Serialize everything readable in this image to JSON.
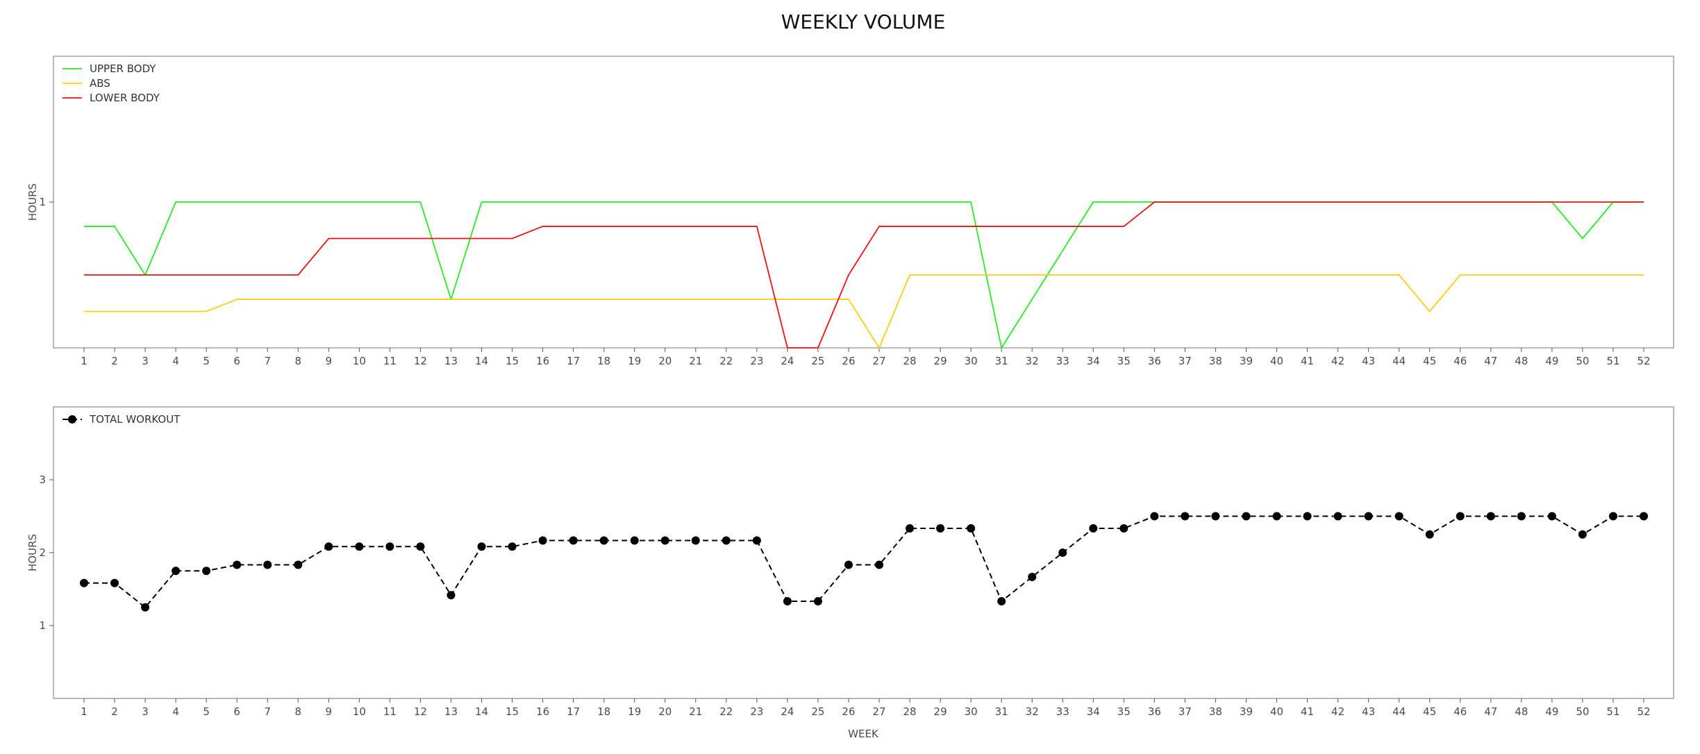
{
  "title": "WEEKLY VOLUME",
  "xlabel": "WEEK",
  "colors": {
    "upper_body": "#22ee22",
    "abs": "#ffcc11",
    "lower_body": "#ee1111",
    "total": "#000000",
    "frame": "#888888",
    "text": "#4a4a4a"
  },
  "chart_data": [
    {
      "type": "line",
      "ylabel": "HOURS",
      "ylim": [
        0,
        2
      ],
      "yticks": [
        1
      ],
      "grid": false,
      "legend_position": "upper-left",
      "x": [
        1,
        2,
        3,
        4,
        5,
        6,
        7,
        8,
        9,
        10,
        11,
        12,
        13,
        14,
        15,
        16,
        17,
        18,
        19,
        20,
        21,
        22,
        23,
        24,
        25,
        26,
        27,
        28,
        29,
        30,
        31,
        32,
        33,
        34,
        35,
        36,
        37,
        38,
        39,
        40,
        41,
        42,
        43,
        44,
        45,
        46,
        47,
        48,
        49,
        50,
        51,
        52
      ],
      "series": [
        {
          "name": "UPPER BODY",
          "color": "#22ee22",
          "values": [
            0.833,
            0.833,
            0.5,
            1,
            1,
            1,
            1,
            1,
            1,
            1,
            1,
            1,
            0.333,
            1,
            1,
            1,
            1,
            1,
            1,
            1,
            1,
            1,
            1,
            1,
            1,
            1,
            1,
            1,
            1,
            1,
            0,
            0.333,
            0.667,
            1,
            1,
            1,
            1,
            1,
            1,
            1,
            1,
            1,
            1,
            1,
            1,
            1,
            1,
            1,
            1,
            0.75,
            1,
            1
          ]
        },
        {
          "name": "ABS",
          "color": "#ffcc11",
          "values": [
            0.25,
            0.25,
            0.25,
            0.25,
            0.25,
            0.333,
            0.333,
            0.333,
            0.333,
            0.333,
            0.333,
            0.333,
            0.333,
            0.333,
            0.333,
            0.333,
            0.333,
            0.333,
            0.333,
            0.333,
            0.333,
            0.333,
            0.333,
            0.333,
            0.333,
            0.333,
            0,
            0.5,
            0.5,
            0.5,
            0.5,
            0.5,
            0.5,
            0.5,
            0.5,
            0.5,
            0.5,
            0.5,
            0.5,
            0.5,
            0.5,
            0.5,
            0.5,
            0.5,
            0.25,
            0.5,
            0.5,
            0.5,
            0.5,
            0.5,
            0.5,
            0.5
          ]
        },
        {
          "name": "LOWER BODY",
          "color": "#ee1111",
          "values": [
            0.5,
            0.5,
            0.5,
            0.5,
            0.5,
            0.5,
            0.5,
            0.5,
            0.75,
            0.75,
            0.75,
            0.75,
            0.75,
            0.75,
            0.75,
            0.833,
            0.833,
            0.833,
            0.833,
            0.833,
            0.833,
            0.833,
            0.833,
            0,
            0,
            0.5,
            0.833,
            0.833,
            0.833,
            0.833,
            0.833,
            0.833,
            0.833,
            0.833,
            0.833,
            1,
            1,
            1,
            1,
            1,
            1,
            1,
            1,
            1,
            1,
            1,
            1,
            1,
            1,
            1,
            1,
            1
          ]
        }
      ]
    },
    {
      "type": "line",
      "xlabel": "WEEK",
      "ylabel": "HOURS",
      "ylim": [
        0,
        4
      ],
      "yticks": [
        1,
        2,
        3
      ],
      "grid": false,
      "legend_position": "upper-left",
      "x": [
        1,
        2,
        3,
        4,
        5,
        6,
        7,
        8,
        9,
        10,
        11,
        12,
        13,
        14,
        15,
        16,
        17,
        18,
        19,
        20,
        21,
        22,
        23,
        24,
        25,
        26,
        27,
        28,
        29,
        30,
        31,
        32,
        33,
        34,
        35,
        36,
        37,
        38,
        39,
        40,
        41,
        42,
        43,
        44,
        45,
        46,
        47,
        48,
        49,
        50,
        51,
        52
      ],
      "series": [
        {
          "name": "TOTAL WORKOUT",
          "color": "#000000",
          "line_style": "dashed",
          "marker": "circle",
          "values": [
            1.583,
            1.583,
            1.25,
            1.75,
            1.75,
            1.833,
            1.833,
            1.833,
            2.083,
            2.083,
            2.083,
            2.083,
            1.417,
            2.083,
            2.083,
            2.167,
            2.167,
            2.167,
            2.167,
            2.167,
            2.167,
            2.167,
            2.167,
            1.333,
            1.333,
            1.833,
            1.833,
            2.333,
            2.333,
            2.333,
            1.333,
            1.667,
            2,
            2.333,
            2.333,
            2.5,
            2.5,
            2.5,
            2.5,
            2.5,
            2.5,
            2.5,
            2.5,
            2.5,
            2.25,
            2.5,
            2.5,
            2.5,
            2.5,
            2.25,
            2.5,
            2.5
          ]
        }
      ]
    }
  ]
}
